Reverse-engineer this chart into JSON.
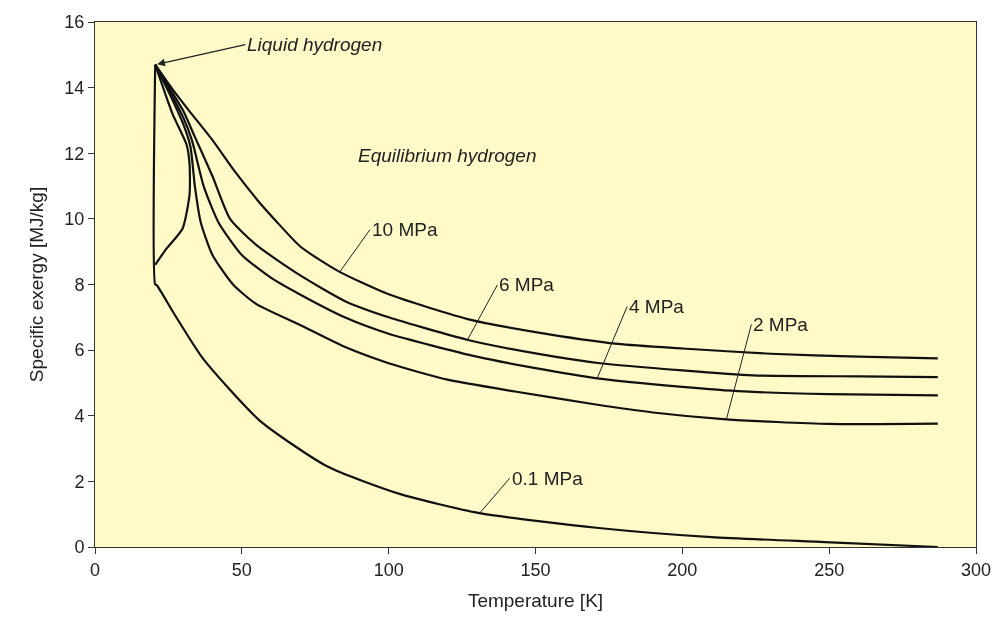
{
  "chart_data": {
    "type": "line",
    "xlabel": "Temperature [K]",
    "ylabel": "Specific exergy [MJ/kg]",
    "xlim": [
      0,
      300
    ],
    "xticks": [
      0,
      50,
      100,
      150,
      200,
      250,
      300
    ],
    "ylim": [
      0,
      16
    ],
    "yticks": [
      0,
      2,
      4,
      6,
      8,
      10,
      12,
      14,
      16
    ],
    "grid": false,
    "marker": "none",
    "line_style": "solid",
    "series": [
      {
        "color": "#111111",
        "x": [
          20.5,
          26,
          32,
          40,
          48,
          56,
          62,
          70,
          83,
          100,
          128,
          150,
          178,
          200,
          230,
          260,
          287
        ],
        "values": [
          14.7,
          14.0,
          13.3,
          12.4,
          11.4,
          10.5,
          9.9,
          9.15,
          8.4,
          7.7,
          6.92,
          6.55,
          6.19,
          6.05,
          5.89,
          5.8,
          5.75
        ]
      },
      {
        "color": "#111111",
        "x": [
          20.5,
          26,
          30,
          34,
          40,
          46,
          55,
          69.5,
          85,
          100,
          127,
          150,
          172,
          200,
          224,
          260,
          287
        ],
        "values": [
          14.7,
          13.9,
          13.3,
          12.5,
          11.3,
          10.0,
          9.2,
          8.3,
          7.5,
          7.0,
          6.31,
          5.9,
          5.6,
          5.38,
          5.23,
          5.2,
          5.18
        ]
      },
      {
        "color": "#111111",
        "x": [
          20.5,
          26,
          30,
          33,
          37,
          42,
          50,
          60,
          69.5,
          85,
          100,
          130,
          150,
          171,
          200,
          221,
          250,
          287
        ],
        "values": [
          14.7,
          13.8,
          13.1,
          12.4,
          11.0,
          9.9,
          8.9,
          8.2,
          7.71,
          7.0,
          6.5,
          5.8,
          5.45,
          5.14,
          4.88,
          4.74,
          4.66,
          4.62
        ]
      },
      {
        "color": "#111111",
        "x": [
          20.5,
          26,
          30,
          32.5,
          34,
          36,
          40,
          47,
          55,
          69.5,
          85,
          100,
          120,
          143,
          170,
          190,
          215,
          250,
          287
        ],
        "values": [
          14.7,
          13.7,
          12.9,
          12.2,
          11.0,
          9.9,
          8.9,
          8.0,
          7.4,
          6.78,
          6.1,
          5.6,
          5.1,
          4.74,
          4.35,
          4.1,
          3.89,
          3.75,
          3.76
        ]
      },
      {
        "color": "#111111",
        "x": [
          20.5,
          26.4,
          31.2,
          32.2,
          32.2,
          29.8,
          24.4,
          20.5
        ],
        "values": [
          14.7,
          13.2,
          12.26,
          11.66,
          10.75,
          9.7,
          9.1,
          8.6
        ]
      },
      {
        "color": "#111111",
        "x": [
          20.5,
          20.5,
          21,
          27,
          36.8,
          56,
          79,
          104,
          131,
          171.5,
          210,
          248.5,
          287
        ],
        "values": [
          14.7,
          8.0,
          7.98,
          7.1,
          5.74,
          3.86,
          2.46,
          1.61,
          1.03,
          0.58,
          0.3,
          0.15,
          0.0
        ]
      }
    ],
    "annotations": [
      {
        "text": "Liquid hydrogen",
        "x": 20.5,
        "y": 14.7
      },
      "Equilibrium hydrogen",
      {
        "text": "10 MPa",
        "x": 83.4,
        "y": 8.39
      },
      {
        "text": "6 MPa",
        "x": 126.8,
        "y": 6.31
      },
      {
        "text": "4 MPa",
        "x": 171,
        "y": 5.14
      },
      {
        "text": "2 MPa",
        "x": 215,
        "y": 3.89
      },
      {
        "text": "0.1 MPa",
        "x": 131,
        "y": 1.03
      }
    ]
  }
}
